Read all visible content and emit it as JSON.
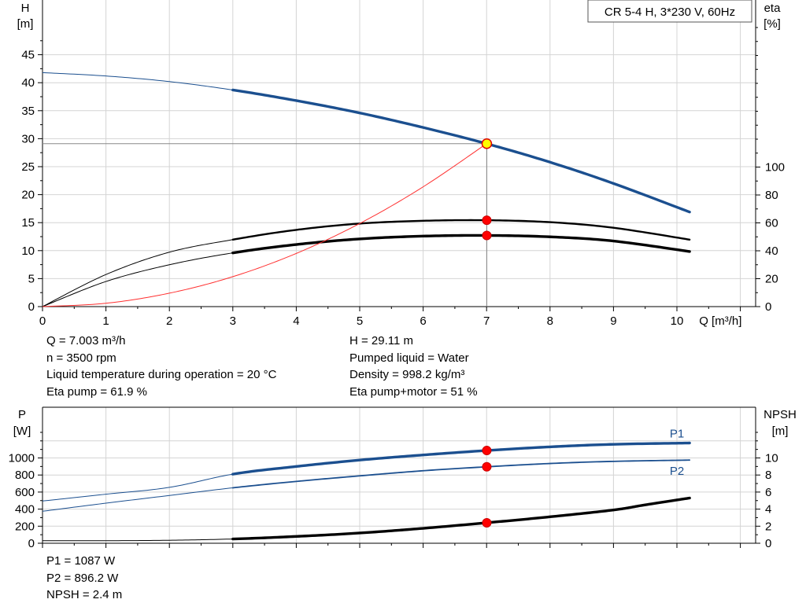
{
  "chart_data": [
    {
      "type": "line",
      "title": "CR 5-4 H, 3*230 V, 60Hz",
      "ylabel": [
        "H",
        "[m]"
      ],
      "y2label": [
        "eta",
        "[%]"
      ],
      "xlabel": "Q [m³/h]",
      "xlim": [
        0,
        11
      ],
      "ylim": [
        0,
        50
      ],
      "y2lim": [
        0,
        100
      ],
      "x_ticks": [
        "0",
        "1",
        "2",
        "3",
        "4",
        "5",
        "6",
        "7",
        "8",
        "9",
        "10"
      ],
      "y_ticks": [
        "0",
        "5",
        "10",
        "15",
        "20",
        "25",
        "30",
        "35",
        "40",
        "45"
      ],
      "y2_ticks": [
        "0",
        "20",
        "40",
        "60",
        "80",
        "100"
      ],
      "grid": true,
      "series": [
        {
          "name": "",
          "axis": "left",
          "color": "#1b4f8f",
          "role": "head",
          "x": [
            0,
            1,
            2,
            3,
            4,
            5,
            6,
            7,
            8,
            9,
            10.2
          ],
          "y": [
            41.8,
            41.2,
            40.2,
            38.7,
            36.8,
            34.6,
            32.0,
            29.11,
            25.8,
            22.0,
            16.9
          ]
        },
        {
          "name": "",
          "axis": "right",
          "color": "#000000",
          "role": "eta pump",
          "x": [
            0,
            1,
            2,
            3,
            4,
            5,
            6,
            7,
            8,
            9,
            10.2
          ],
          "y": [
            0,
            23,
            39,
            48,
            55,
            59.5,
            61.5,
            61.9,
            60.5,
            56.5,
            48
          ]
        },
        {
          "name": "",
          "axis": "right",
          "color": "#000000",
          "role": "eta pump+motor",
          "x": [
            0,
            1,
            2,
            3,
            4,
            5,
            6,
            7,
            8,
            9,
            10.2
          ],
          "y": [
            0,
            18,
            30,
            38.5,
            44.5,
            48.5,
            50.5,
            51,
            50,
            47,
            39.5
          ]
        },
        {
          "name": "",
          "axis": "left",
          "color": "#ff3030",
          "role": "system curve",
          "x": [
            0,
            1,
            2,
            3,
            4,
            5,
            6,
            7
          ],
          "y": [
            0,
            0.6,
            2.4,
            5.35,
            9.5,
            14.85,
            21.4,
            29.11
          ]
        }
      ],
      "duty_point": {
        "x": 7.003,
        "y": 29.11
      },
      "eta_markers": [
        61.9,
        51
      ]
    },
    {
      "type": "line",
      "ylabel": [
        "P",
        "[W]"
      ],
      "y2label": [
        "NPSH",
        "[m]"
      ],
      "xlim": [
        0,
        11
      ],
      "ylim": [
        0,
        1400
      ],
      "y2lim": [
        0,
        14
      ],
      "y_ticks": [
        "0",
        "200",
        "400",
        "600",
        "800",
        "1000"
      ],
      "y2_ticks": [
        "0",
        "2",
        "4",
        "6",
        "8",
        "10"
      ],
      "grid": true,
      "series": [
        {
          "name": "P1",
          "axis": "left",
          "color": "#1b4f8f",
          "x": [
            0,
            1,
            2,
            3,
            4,
            5,
            6,
            7,
            8,
            9,
            10.2
          ],
          "y": [
            495,
            575,
            655,
            810,
            900,
            975,
            1035,
            1087,
            1130,
            1160,
            1175
          ]
        },
        {
          "name": "P2",
          "axis": "left",
          "color": "#1b4f8f",
          "x": [
            0,
            1,
            2,
            3,
            4,
            5,
            6,
            7,
            8,
            9,
            10.2
          ],
          "y": [
            375,
            470,
            560,
            650,
            725,
            790,
            850,
            896.2,
            935,
            960,
            975
          ]
        },
        {
          "name": "",
          "axis": "right",
          "color": "#000000",
          "x": [
            0,
            1,
            2,
            3,
            4,
            5,
            6,
            7,
            8,
            9,
            9.5,
            10.2
          ],
          "y": [
            0.3,
            0.3,
            0.35,
            0.5,
            0.8,
            1.2,
            1.75,
            2.4,
            3.1,
            3.9,
            4.5,
            5.3
          ]
        }
      ],
      "markers": [
        1087,
        896.2,
        2.4
      ]
    }
  ],
  "duty_info_left": [
    "Q = 7.003 m³/h",
    "n = 3500 rpm",
    "Liquid temperature during operation = 20 °C",
    "Eta pump = 61.9 %"
  ],
  "duty_info_right": [
    "H = 29.11 m",
    "Pumped liquid = Water",
    "Density = 998.2 kg/m³",
    "Eta pump+motor = 51 %"
  ],
  "power_info": [
    "P1 = 1087 W",
    "P2 = 896.2 W",
    "NPSH = 2.4 m"
  ]
}
